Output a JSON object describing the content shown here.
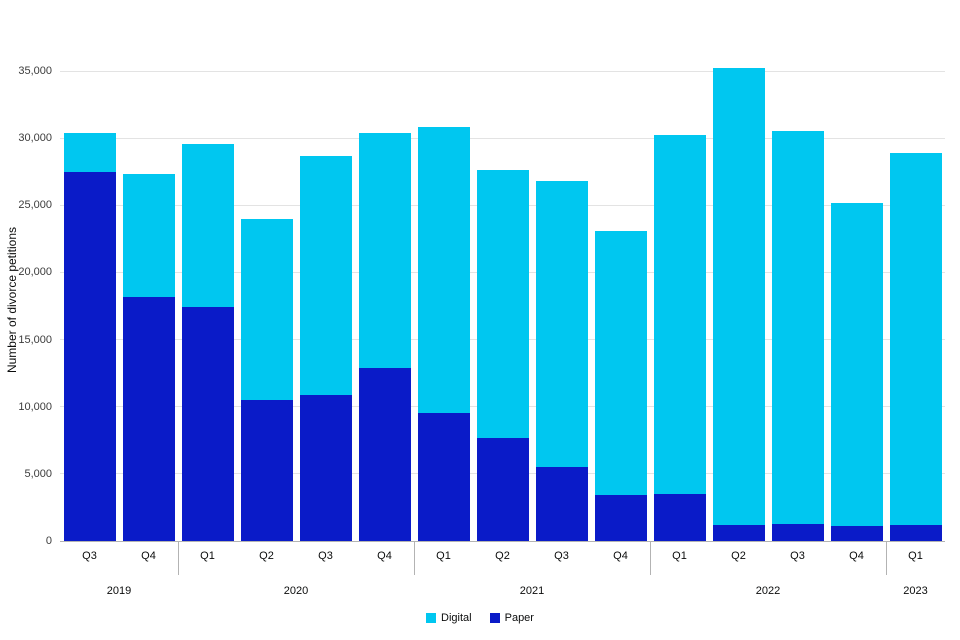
{
  "chart_data": {
    "type": "bar",
    "stacked": true,
    "title": "",
    "xlabel": "",
    "ylabel": "Number of divorce petitions",
    "ylim": [
      0,
      35000
    ],
    "yticks": [
      0,
      5000,
      10000,
      15000,
      20000,
      25000,
      30000,
      35000
    ],
    "ytick_labels": [
      "0",
      "5,000",
      "10,000",
      "15,000",
      "20,000",
      "25,000",
      "30,000",
      "35,000"
    ],
    "grid": "horizontal",
    "categories": [
      "Q3",
      "Q4",
      "Q1",
      "Q2",
      "Q3",
      "Q4",
      "Q1",
      "Q2",
      "Q3",
      "Q4",
      "Q1",
      "Q2",
      "Q3",
      "Q4",
      "Q1"
    ],
    "year_groups": [
      {
        "label": "2019",
        "start": 0,
        "end": 1
      },
      {
        "label": "2020",
        "start": 2,
        "end": 5
      },
      {
        "label": "2021",
        "start": 6,
        "end": 9
      },
      {
        "label": "2022",
        "start": 10,
        "end": 13
      },
      {
        "label": "2023",
        "start": 14,
        "end": 14
      }
    ],
    "series": [
      {
        "name": "Paper",
        "color": "#0a1bc8",
        "values": [
          27500,
          18200,
          17400,
          10500,
          10900,
          12900,
          9500,
          7700,
          5500,
          3400,
          3500,
          1200,
          1300,
          1100,
          1200
        ]
      },
      {
        "name": "Digital",
        "color": "#00c7f0",
        "values": [
          2900,
          9100,
          12200,
          13500,
          17800,
          17500,
          21300,
          19900,
          21300,
          19700,
          26700,
          34000,
          29200,
          24100,
          27700
        ]
      }
    ],
    "totals": [
      30400,
      27300,
      29600,
      24000,
      28700,
      30400,
      30800,
      27600,
      26800,
      23100,
      30200,
      35200,
      30500,
      25200,
      28900
    ],
    "legend": {
      "position": "bottom",
      "entries": [
        {
          "label": "Digital",
          "color": "#00c7f0"
        },
        {
          "label": "Paper",
          "color": "#0a1bc8"
        }
      ]
    }
  }
}
